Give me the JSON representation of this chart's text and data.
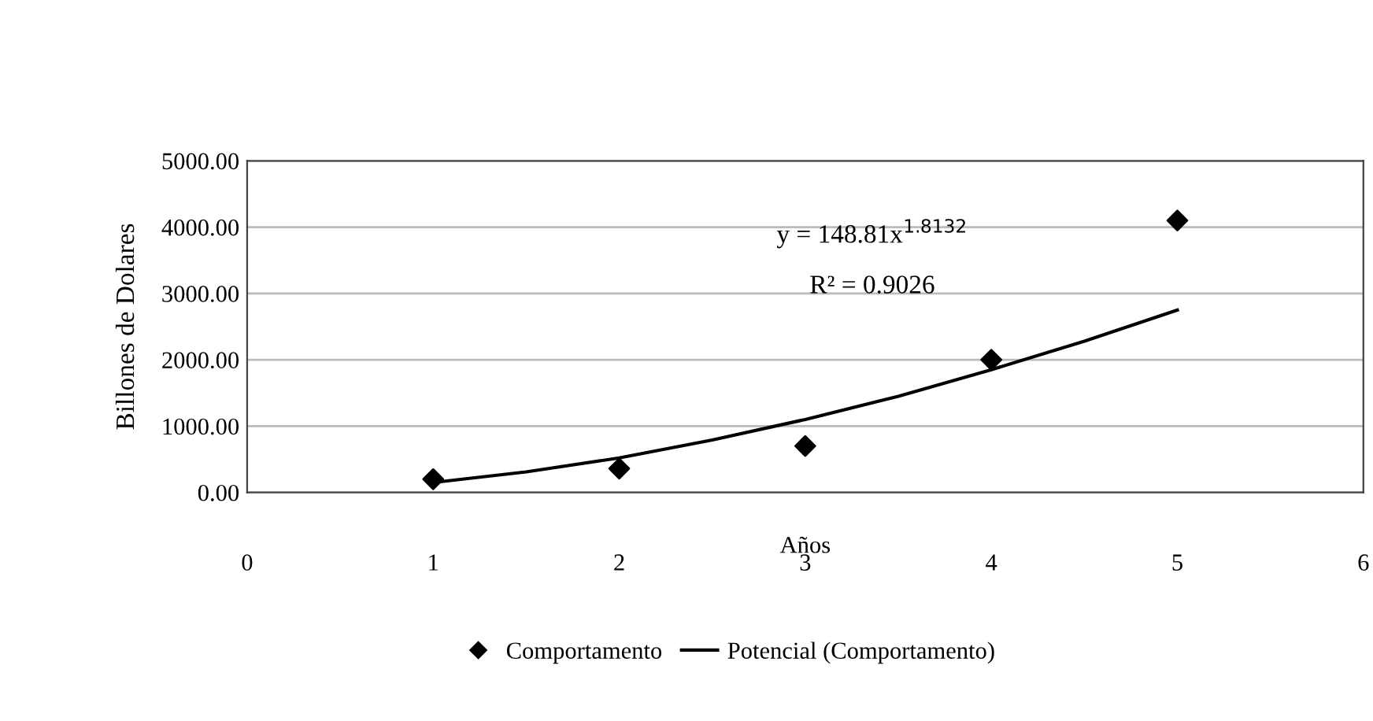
{
  "chart_data": {
    "type": "scatter",
    "xlabel": "Años",
    "ylabel": "Billones de Dolares",
    "series": [
      {
        "name": "Comportamento",
        "color": "#000000",
        "marker": "diamond",
        "x": [
          1,
          2,
          3,
          4,
          5
        ],
        "values": [
          200,
          360,
          700,
          2000,
          4100
        ]
      },
      {
        "name": "Potencial (Comportamento)",
        "type": "line",
        "color": "#000000",
        "marker": "none",
        "line_style": "solid",
        "x": [
          1,
          1.5,
          2,
          2.5,
          3,
          3.5,
          4,
          4.5,
          5
        ],
        "values": [
          150,
          310,
          520,
          790,
          1100,
          1450,
          1850,
          2280,
          2750
        ]
      }
    ],
    "xlim": [
      0,
      6
    ],
    "xticks": [
      0,
      1,
      2,
      3,
      4,
      5,
      6
    ],
    "ylim": [
      0,
      5000
    ],
    "yticks": [
      {
        "value": 0,
        "label": "0.00"
      },
      {
        "value": 1000,
        "label": "1000.00"
      },
      {
        "value": 2000,
        "label": "2000.00"
      },
      {
        "value": 3000,
        "label": "3000.00"
      },
      {
        "value": 4000,
        "label": "4000.00"
      },
      {
        "value": 5000,
        "label": "5000.00"
      }
    ],
    "grid": "y",
    "legend": "bottom",
    "annotations": [
      "y = 148.81x$^{1.8132}$",
      "R² = 0.9026"
    ]
  }
}
